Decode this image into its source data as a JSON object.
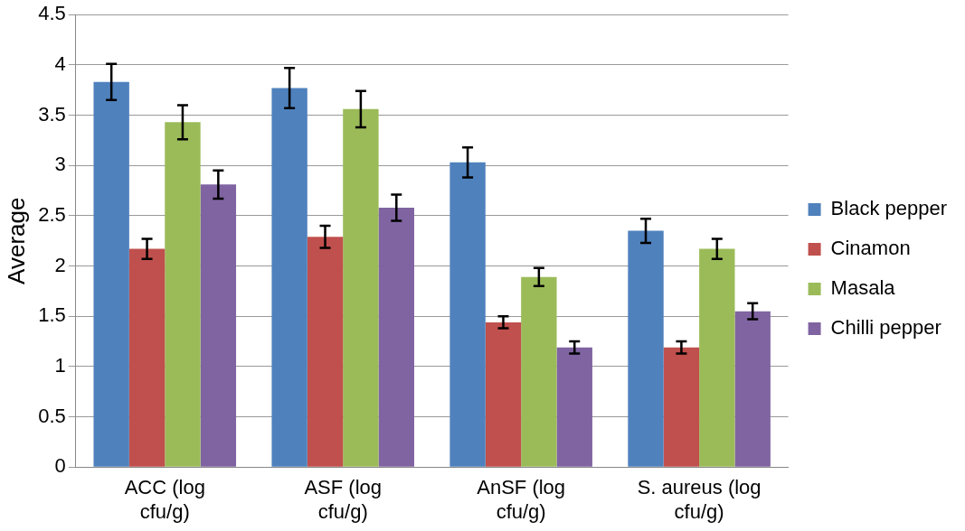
{
  "chart_data": {
    "type": "bar",
    "ylabel": "Average",
    "categories": [
      "ACC (log cfu/g)",
      "ASF (log cfu/g)",
      "AnSF (log cfu/g)",
      "S. aureus (log cfu/g)"
    ],
    "series": [
      {
        "name": "Black pepper",
        "color": "#4f81bd",
        "values": [
          3.83,
          3.77,
          3.03,
          2.35
        ],
        "errors": [
          0.18,
          0.2,
          0.15,
          0.12
        ]
      },
      {
        "name": "Cinamon",
        "color": "#c0504d",
        "values": [
          2.17,
          2.29,
          1.44,
          1.19
        ],
        "errors": [
          0.1,
          0.11,
          0.06,
          0.06
        ]
      },
      {
        "name": "Masala",
        "color": "#9bbb59",
        "values": [
          3.43,
          3.56,
          1.89,
          2.17
        ],
        "errors": [
          0.17,
          0.18,
          0.09,
          0.1
        ]
      },
      {
        "name": "Chilli pepper",
        "color": "#8064a2",
        "values": [
          2.81,
          2.58,
          1.19,
          1.55
        ],
        "errors": [
          0.14,
          0.13,
          0.06,
          0.08
        ]
      }
    ],
    "ylim": [
      0,
      4.5
    ],
    "yticks": [
      0,
      0.5,
      1,
      1.5,
      2,
      2.5,
      3,
      3.5,
      4,
      4.5
    ],
    "grid": "y",
    "legend": "right"
  }
}
